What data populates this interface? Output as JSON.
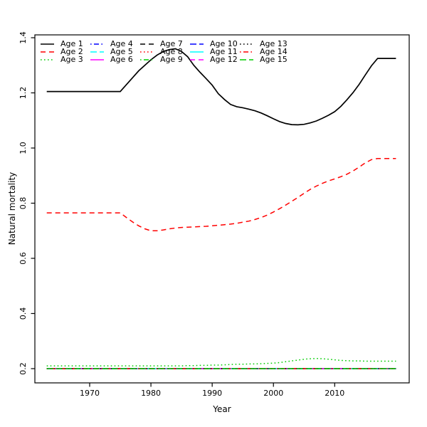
{
  "chart_data": {
    "type": "line",
    "title": "",
    "xlabel": "Year",
    "ylabel": "Natural mortality",
    "x_range": [
      1963,
      2020
    ],
    "xlim": [
      1960.7,
      2022.3
    ],
    "ylim": [
      0.148,
      1.413
    ],
    "grid": false,
    "legend_position": "top-left",
    "legend_columns": 5,
    "x_ticks": [
      1970,
      1980,
      1990,
      2000,
      2010
    ],
    "x_tick_labels": [
      "1970",
      "1980",
      "1990",
      "2000",
      "2010"
    ],
    "y_ticks": [
      0.2,
      0.4,
      0.6,
      0.8,
      1.0,
      1.2,
      1.4
    ],
    "y_tick_labels": [
      "0.2",
      "0.4",
      "0.6",
      "0.8",
      "1.0",
      "1.2",
      "1.4"
    ],
    "colors": {
      "black": "#000000",
      "red": "#FF0000",
      "green": "#00CD00",
      "blue": "#0000FF",
      "cyan": "#00FFFF",
      "magenta": "#FF00FF"
    },
    "series": [
      {
        "name": "Age 1",
        "color": "#000000",
        "linetype": "solid",
        "values": [
          1.205,
          1.205,
          1.205,
          1.205,
          1.205,
          1.205,
          1.205,
          1.205,
          1.205,
          1.205,
          1.205,
          1.205,
          1.205,
          1.23,
          1.255,
          1.28,
          1.3,
          1.32,
          1.337,
          1.35,
          1.357,
          1.36,
          1.35,
          1.331,
          1.3,
          1.275,
          1.252,
          1.228,
          1.197,
          1.176,
          1.158,
          1.15,
          1.146,
          1.141,
          1.135,
          1.127,
          1.117,
          1.106,
          1.096,
          1.089,
          1.085,
          1.084,
          1.086,
          1.091,
          1.098,
          1.108,
          1.119,
          1.132,
          1.151,
          1.175,
          1.201,
          1.231,
          1.265,
          1.298,
          1.325,
          1.325,
          1.325,
          1.325
        ]
      },
      {
        "name": "Age 2",
        "color": "#FF0000",
        "linetype": "dashed",
        "values": [
          0.765,
          0.765,
          0.765,
          0.765,
          0.765,
          0.765,
          0.765,
          0.765,
          0.765,
          0.765,
          0.765,
          0.765,
          0.765,
          0.748,
          0.732,
          0.718,
          0.707,
          0.7,
          0.7,
          0.703,
          0.707,
          0.71,
          0.712,
          0.713,
          0.714,
          0.715,
          0.716,
          0.718,
          0.72,
          0.722,
          0.724,
          0.727,
          0.731,
          0.735,
          0.741,
          0.748,
          0.757,
          0.768,
          0.78,
          0.793,
          0.807,
          0.821,
          0.836,
          0.85,
          0.862,
          0.872,
          0.881,
          0.888,
          0.896,
          0.905,
          0.917,
          0.931,
          0.946,
          0.958,
          0.962,
          0.962,
          0.962,
          0.962
        ]
      },
      {
        "name": "Age 3",
        "color": "#00CD00",
        "linetype": "dotted",
        "values": [
          0.21,
          0.21,
          0.21,
          0.21,
          0.21,
          0.21,
          0.21,
          0.21,
          0.21,
          0.21,
          0.21,
          0.21,
          0.21,
          0.21,
          0.21,
          0.21,
          0.21,
          0.21,
          0.21,
          0.21,
          0.21,
          0.21,
          0.21,
          0.211,
          0.211,
          0.212,
          0.212,
          0.213,
          0.213,
          0.214,
          0.215,
          0.216,
          0.216,
          0.217,
          0.217,
          0.218,
          0.219,
          0.22,
          0.222,
          0.225,
          0.228,
          0.231,
          0.234,
          0.236,
          0.237,
          0.236,
          0.234,
          0.232,
          0.23,
          0.229,
          0.228,
          0.228,
          0.227,
          0.227,
          0.227,
          0.227,
          0.227,
          0.227
        ]
      },
      {
        "name": "Age 4",
        "color": "#0000FF",
        "linetype": "dotdash",
        "constant": 0.2
      },
      {
        "name": "Age 5",
        "color": "#00FFFF",
        "linetype": "longdash",
        "constant": 0.2
      },
      {
        "name": "Age 6",
        "color": "#FF00FF",
        "linetype": "solid",
        "constant": 0.2
      },
      {
        "name": "Age 7",
        "color": "#000000",
        "linetype": "dashed",
        "constant": 0.2
      },
      {
        "name": "Age 8",
        "color": "#FF0000",
        "linetype": "dotted",
        "constant": 0.2
      },
      {
        "name": "Age 9",
        "color": "#00CD00",
        "linetype": "dotdash",
        "constant": 0.2
      },
      {
        "name": "Age 10",
        "color": "#0000FF",
        "linetype": "longdash",
        "constant": 0.2
      },
      {
        "name": "Age 11",
        "color": "#00FFFF",
        "linetype": "solid",
        "constant": 0.2
      },
      {
        "name": "Age 12",
        "color": "#FF00FF",
        "linetype": "dashed",
        "constant": 0.2
      },
      {
        "name": "Age 13",
        "color": "#000000",
        "linetype": "dotted",
        "constant": 0.2
      },
      {
        "name": "Age 14",
        "color": "#FF0000",
        "linetype": "dotdash",
        "constant": 0.2
      },
      {
        "name": "Age 15",
        "color": "#00CD00",
        "linetype": "longdash",
        "constant": 0.2
      }
    ]
  }
}
